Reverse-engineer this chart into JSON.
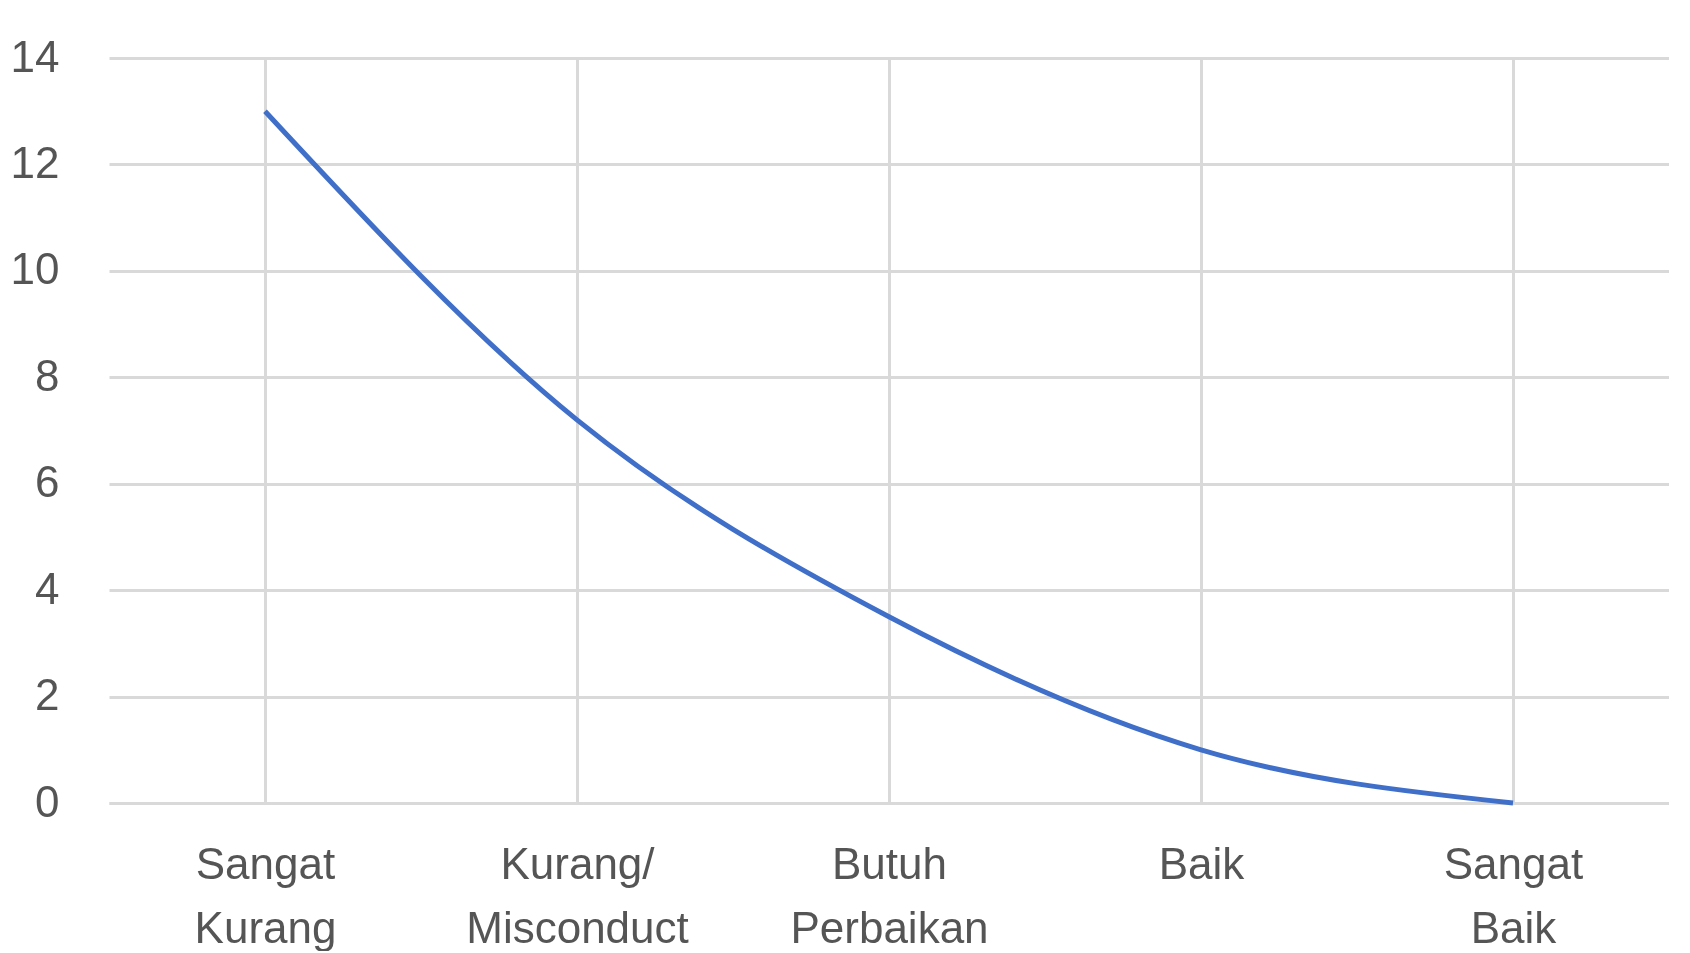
{
  "chart_data": {
    "type": "line",
    "categories": [
      "Sangat Kurang",
      "Kurang/Misconduct",
      "Butuh Perbaikan",
      "Baik",
      "Sangat Baik"
    ],
    "series": [
      {
        "color": "#3f6fc8",
        "values": [
          13,
          7.2,
          3.5,
          1.0,
          0
        ]
      }
    ],
    "ylim": [
      0,
      14
    ],
    "yticks": [
      0,
      2,
      4,
      6,
      8,
      10,
      12,
      14
    ],
    "grid": true,
    "legend": false,
    "marker": "none",
    "line_style": "solid"
  }
}
